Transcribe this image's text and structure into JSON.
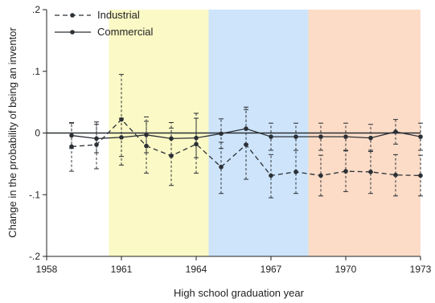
{
  "chart_data": {
    "type": "line",
    "xlabel": "High school graduation year",
    "ylabel": "Change in the probability of being an inventor",
    "xlim": [
      1958,
      1973
    ],
    "ylim": [
      -0.2,
      0.2
    ],
    "x_ticks": [
      1958,
      1961,
      1964,
      1967,
      1970,
      1973
    ],
    "y_ticks": [
      0.2,
      0.1,
      0,
      -0.1,
      -0.2
    ],
    "y_tick_labels": [
      ".2",
      ".1",
      "0",
      "-.1",
      "-.2"
    ],
    "x": [
      1959,
      1960,
      1961,
      1962,
      1963,
      1964,
      1965,
      1966,
      1967,
      1968,
      1969,
      1970,
      1971,
      1972,
      1973
    ],
    "series": [
      {
        "name": "Industrial",
        "style": "dashed",
        "values": [
          -0.022,
          -0.019,
          0.022,
          -0.021,
          -0.037,
          -0.018,
          -0.055,
          -0.019,
          -0.069,
          -0.063,
          -0.069,
          -0.062,
          -0.063,
          -0.068,
          -0.069
        ],
        "ci_low": [
          -0.062,
          -0.058,
          -0.052,
          -0.065,
          -0.085,
          -0.065,
          -0.098,
          -0.075,
          -0.105,
          -0.098,
          -0.102,
          -0.095,
          -0.098,
          -0.102,
          -0.102
        ],
        "ci_high": [
          0.016,
          0.018,
          0.095,
          0.019,
          0.008,
          0.032,
          -0.015,
          0.038,
          -0.035,
          -0.028,
          -0.036,
          -0.029,
          -0.028,
          -0.035,
          -0.036
        ]
      },
      {
        "name": "Commercial",
        "style": "solid",
        "values": [
          -0.004,
          -0.009,
          -0.007,
          -0.003,
          -0.009,
          -0.008,
          -0.001,
          0.007,
          -0.006,
          -0.006,
          -0.006,
          -0.006,
          -0.008,
          0.002,
          -0.006
        ],
        "ci_low": [
          -0.025,
          -0.032,
          -0.038,
          -0.032,
          -0.035,
          -0.04,
          -0.025,
          -0.018,
          -0.028,
          -0.028,
          -0.028,
          -0.028,
          -0.03,
          -0.018,
          -0.028
        ],
        "ci_high": [
          0.017,
          0.014,
          0.024,
          0.026,
          0.017,
          0.024,
          0.023,
          0.042,
          0.016,
          0.016,
          0.016,
          0.016,
          0.014,
          0.022,
          0.016
        ]
      }
    ],
    "reference_line": 0,
    "shaded_regions": [
      {
        "x_start": 1960.5,
        "x_end": 1964.5,
        "color": "#fbf9c5"
      },
      {
        "x_start": 1964.5,
        "x_end": 1968.5,
        "color": "#cde4fa"
      },
      {
        "x_start": 1968.5,
        "x_end": 1973,
        "color": "#fcdcc7"
      }
    ],
    "legend": {
      "placement": "top-left",
      "items": [
        {
          "label": "Industrial",
          "style": "dashed"
        },
        {
          "label": "Commercial",
          "style": "solid"
        }
      ]
    },
    "grid": false
  },
  "colors": {
    "line": "#2b3036",
    "axis": "#222222",
    "background": "#ffffff"
  }
}
